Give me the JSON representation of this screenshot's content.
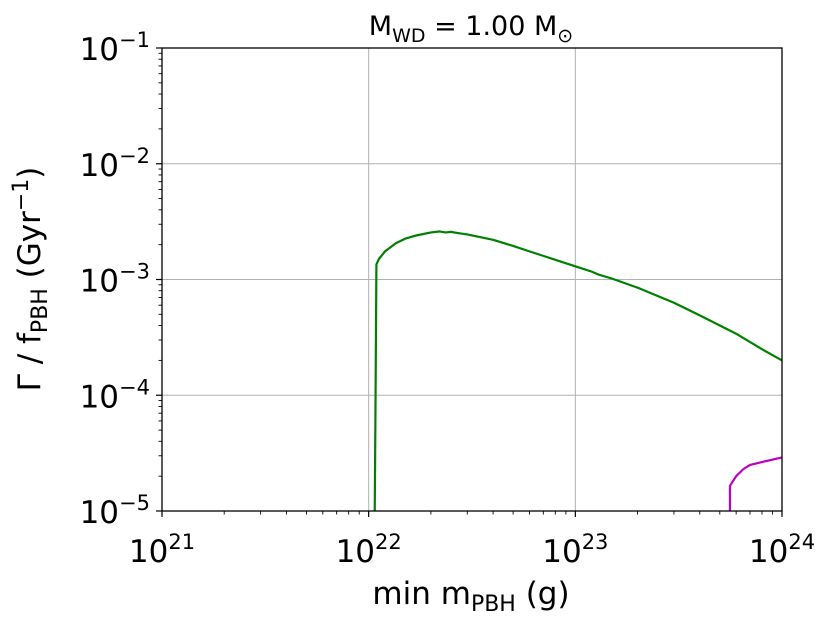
{
  "chart_data": {
    "type": "line",
    "title_parts": {
      "main": "M",
      "sub": "WD",
      "rest": " = 1.00 M",
      "symbol": "⊙"
    },
    "xlabel_parts": {
      "main": "min m",
      "sub": "PBH",
      "rest": " (g)"
    },
    "ylabel_parts": {
      "a": "Γ / f",
      "sub": "PBH",
      "b": " (Gyr",
      "sup": "−1",
      "c": ")"
    },
    "x_scale": "log",
    "y_scale": "log",
    "xlim": [
      1e+21,
      1e+24
    ],
    "ylim": [
      1e-05,
      0.1
    ],
    "x_ticks": [
      {
        "base": "10",
        "exp": "21",
        "value": 1e+21
      },
      {
        "base": "10",
        "exp": "22",
        "value": 1e+22
      },
      {
        "base": "10",
        "exp": "23",
        "value": 1e+23
      },
      {
        "base": "10",
        "exp": "24",
        "value": 1e+24
      }
    ],
    "y_ticks": [
      {
        "base": "10",
        "exp": "−5",
        "value": 1e-05
      },
      {
        "base": "10",
        "exp": "−4",
        "value": 0.0001
      },
      {
        "base": "10",
        "exp": "−3",
        "value": 0.001
      },
      {
        "base": "10",
        "exp": "−2",
        "value": 0.01
      },
      {
        "base": "10",
        "exp": "−1",
        "value": 0.1
      }
    ],
    "grid": true,
    "series": [
      {
        "color": "#008000",
        "points": [
          [
            1.07e+22,
            1e-05
          ],
          [
            1.08e+22,
            0.0001
          ],
          [
            1.09e+22,
            0.00135
          ],
          [
            1.12e+22,
            0.0015
          ],
          [
            1.2e+22,
            0.00175
          ],
          [
            1.35e+22,
            0.00205
          ],
          [
            1.5e+22,
            0.00225
          ],
          [
            1.7e+22,
            0.0024
          ],
          [
            2e+22,
            0.00255
          ],
          [
            2.2e+22,
            0.0026
          ],
          [
            2.35e+22,
            0.00255
          ],
          [
            2.5e+22,
            0.00258
          ],
          [
            2.7e+22,
            0.00252
          ],
          [
            3e+22,
            0.00245
          ],
          [
            4e+22,
            0.0022
          ],
          [
            5e+22,
            0.00195
          ],
          [
            6e+22,
            0.00175
          ],
          [
            7e+22,
            0.0016
          ],
          [
            8e+22,
            0.00148
          ],
          [
            1e+23,
            0.0013
          ],
          [
            1.2e+23,
            0.00117
          ],
          [
            1.3e+23,
            0.0011
          ],
          [
            1.5e+23,
            0.00102
          ],
          [
            2e+23,
            0.00085
          ],
          [
            3e+23,
            0.00063
          ],
          [
            4e+23,
            0.00049
          ],
          [
            6e+23,
            0.00034
          ],
          [
            8e+23,
            0.00025
          ],
          [
            1e+24,
            0.0002
          ]
        ]
      },
      {
        "color": "#bf00bf",
        "points": [
          [
            5.6e+23,
            1e-05
          ],
          [
            5.6e+23,
            1.65e-05
          ],
          [
            6e+23,
            2e-05
          ],
          [
            6.5e+23,
            2.3e-05
          ],
          [
            7e+23,
            2.5e-05
          ],
          [
            8e+23,
            2.65e-05
          ],
          [
            1e+24,
            2.9e-05
          ]
        ]
      }
    ]
  }
}
